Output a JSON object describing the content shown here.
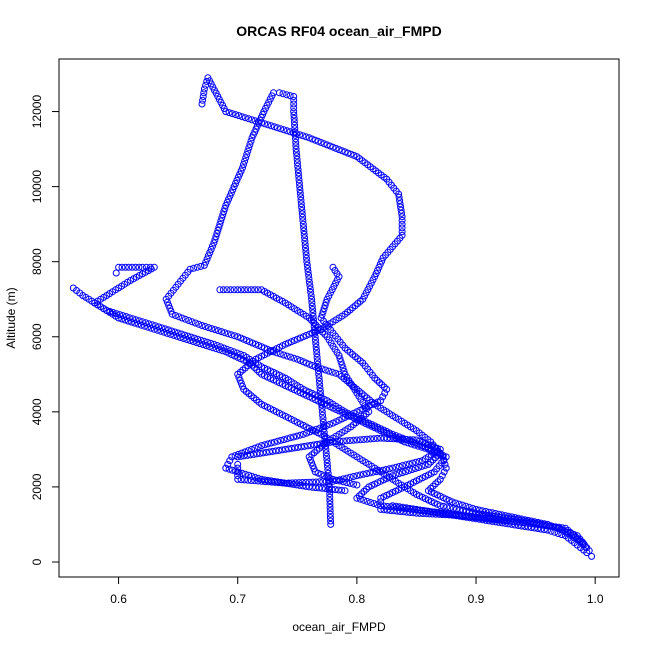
{
  "chart_data": {
    "type": "scatter",
    "title": "ORCAS RF04 ocean_air_FMPD",
    "xlabel": "ocean_air_FMPD",
    "ylabel": "Altitude (m)",
    "xlim": [
      0.55,
      1.02
    ],
    "ylim": [
      -400,
      13400
    ],
    "xticks": [
      0.6,
      0.7,
      0.8,
      0.9,
      1.0
    ],
    "xtick_labels": [
      "0.6",
      "0.7",
      "0.8",
      "0.9",
      "1.0"
    ],
    "yticks": [
      0,
      2000,
      4000,
      6000,
      8000,
      10000,
      12000
    ],
    "ytick_labels": [
      "0",
      "2000",
      "4000",
      "6000",
      "8000",
      "10000",
      "12000"
    ],
    "marker": "open-circle",
    "color": "#0000ff",
    "grid": false,
    "legend": "none",
    "series": [
      {
        "values": [
          [
            0.778,
            1000
          ],
          [
            0.777,
            2000
          ],
          [
            0.774,
            3000
          ],
          [
            0.771,
            4000
          ],
          [
            0.768,
            5000
          ],
          [
            0.765,
            6000
          ],
          [
            0.762,
            7000
          ],
          [
            0.758,
            8000
          ],
          [
            0.755,
            9000
          ],
          [
            0.752,
            10000
          ],
          [
            0.749,
            11000
          ],
          [
            0.747,
            12000
          ],
          [
            0.747,
            12400
          ],
          [
            0.735,
            12500
          ],
          [
            0.73,
            12500
          ],
          [
            0.722,
            12000
          ],
          [
            0.712,
            11300
          ],
          [
            0.704,
            10500
          ],
          [
            0.69,
            9500
          ],
          [
            0.68,
            8500
          ],
          [
            0.672,
            7900
          ],
          [
            0.66,
            7800
          ],
          [
            0.65,
            7400
          ],
          [
            0.64,
            7000
          ],
          [
            0.645,
            6600
          ],
          [
            0.67,
            6300
          ],
          [
            0.7,
            6000
          ],
          [
            0.73,
            5600
          ],
          [
            0.75,
            5400
          ],
          [
            0.765,
            5200
          ],
          [
            0.785,
            5000
          ],
          [
            0.8,
            4600
          ],
          [
            0.815,
            4200
          ],
          [
            0.835,
            3800
          ],
          [
            0.85,
            3500
          ],
          [
            0.862,
            3200
          ],
          [
            0.872,
            2800
          ],
          [
            0.875,
            2500
          ],
          [
            0.87,
            2200
          ],
          [
            0.86,
            1900
          ],
          [
            0.88,
            1600
          ],
          [
            0.9,
            1400
          ],
          [
            0.93,
            1200
          ],
          [
            0.96,
            1000
          ],
          [
            0.985,
            700
          ],
          [
            0.995,
            300
          ],
          [
            0.997,
            150
          ]
        ]
      },
      {
        "values": [
          [
            0.67,
            12200
          ],
          [
            0.672,
            12600
          ],
          [
            0.675,
            12900
          ],
          [
            0.69,
            12000
          ],
          [
            0.72,
            11700
          ],
          [
            0.76,
            11300
          ],
          [
            0.8,
            10800
          ],
          [
            0.825,
            10200
          ],
          [
            0.835,
            9800
          ],
          [
            0.838,
            9200
          ],
          [
            0.838,
            8700
          ],
          [
            0.83,
            8400
          ],
          [
            0.822,
            8100
          ],
          [
            0.815,
            7600
          ],
          [
            0.805,
            7000
          ],
          [
            0.79,
            6600
          ],
          [
            0.77,
            6200
          ],
          [
            0.74,
            5800
          ],
          [
            0.715,
            5400
          ],
          [
            0.7,
            5000
          ],
          [
            0.705,
            4600
          ],
          [
            0.72,
            4200
          ],
          [
            0.745,
            3800
          ],
          [
            0.77,
            3400
          ],
          [
            0.79,
            3000
          ],
          [
            0.81,
            2600
          ],
          [
            0.83,
            2200
          ],
          [
            0.85,
            1800
          ],
          [
            0.87,
            1500
          ],
          [
            0.9,
            1300
          ],
          [
            0.94,
            1100
          ],
          [
            0.97,
            900
          ],
          [
            0.985,
            600
          ],
          [
            0.992,
            400
          ]
        ]
      },
      {
        "values": [
          [
            0.598,
            7700
          ],
          [
            0.6,
            7850
          ],
          [
            0.62,
            7850
          ],
          [
            0.63,
            7850
          ],
          [
            0.61,
            7500
          ],
          [
            0.59,
            7100
          ],
          [
            0.58,
            6900
          ],
          [
            0.6,
            6500
          ],
          [
            0.63,
            6200
          ],
          [
            0.66,
            5900
          ],
          [
            0.69,
            5600
          ],
          [
            0.71,
            5300
          ],
          [
            0.72,
            5000
          ],
          [
            0.74,
            4700
          ],
          [
            0.76,
            4400
          ],
          [
            0.78,
            4100
          ],
          [
            0.8,
            3800
          ],
          [
            0.82,
            3500
          ],
          [
            0.84,
            3200
          ],
          [
            0.86,
            3000
          ],
          [
            0.875,
            2800
          ],
          [
            0.865,
            2400
          ],
          [
            0.84,
            2000
          ],
          [
            0.82,
            1700
          ],
          [
            0.82,
            1400
          ],
          [
            0.85,
            1300
          ],
          [
            0.88,
            1250
          ],
          [
            0.91,
            1150
          ],
          [
            0.94,
            1050
          ]
        ]
      },
      {
        "values": [
          [
            0.562,
            7300
          ],
          [
            0.57,
            7100
          ],
          [
            0.59,
            6700
          ],
          [
            0.62,
            6400
          ],
          [
            0.65,
            6100
          ],
          [
            0.68,
            5800
          ],
          [
            0.705,
            5500
          ],
          [
            0.72,
            5200
          ],
          [
            0.74,
            4900
          ],
          [
            0.755,
            4600
          ],
          [
            0.775,
            4300
          ],
          [
            0.79,
            4000
          ],
          [
            0.81,
            3700
          ],
          [
            0.83,
            3400
          ],
          [
            0.855,
            3100
          ],
          [
            0.87,
            2900
          ],
          [
            0.86,
            2600
          ],
          [
            0.83,
            2300
          ],
          [
            0.81,
            2000
          ],
          [
            0.8,
            1700
          ],
          [
            0.82,
            1500
          ],
          [
            0.86,
            1350
          ],
          [
            0.9,
            1200
          ],
          [
            0.94,
            1050
          ],
          [
            0.975,
            900
          ],
          [
            0.99,
            500
          ]
        ]
      },
      {
        "values": [
          [
            0.685,
            7250
          ],
          [
            0.7,
            7250
          ],
          [
            0.72,
            7250
          ],
          [
            0.74,
            6900
          ],
          [
            0.76,
            6500
          ],
          [
            0.775,
            6000
          ],
          [
            0.785,
            5500
          ],
          [
            0.79,
            5000
          ],
          [
            0.8,
            4500
          ],
          [
            0.81,
            4000
          ],
          [
            0.795,
            3600
          ],
          [
            0.775,
            3200
          ],
          [
            0.76,
            2800
          ],
          [
            0.765,
            2400
          ],
          [
            0.78,
            2200
          ],
          [
            0.8,
            2050
          ]
        ]
      },
      {
        "values": [
          [
            0.78,
            7850
          ],
          [
            0.785,
            7600
          ],
          [
            0.775,
            7000
          ],
          [
            0.77,
            6500
          ],
          [
            0.78,
            6100
          ],
          [
            0.79,
            5700
          ],
          [
            0.805,
            5300
          ],
          [
            0.815,
            4900
          ],
          [
            0.825,
            4600
          ],
          [
            0.82,
            4300
          ],
          [
            0.8,
            4000
          ],
          [
            0.78,
            3700
          ],
          [
            0.755,
            3400
          ],
          [
            0.72,
            3100
          ],
          [
            0.695,
            2800
          ],
          [
            0.69,
            2500
          ],
          [
            0.72,
            2200
          ],
          [
            0.76,
            2000
          ],
          [
            0.79,
            1900
          ]
        ]
      },
      {
        "values": [
          [
            0.7,
            2800
          ],
          [
            0.74,
            3000
          ],
          [
            0.78,
            3200
          ],
          [
            0.82,
            3300
          ],
          [
            0.85,
            3250
          ],
          [
            0.87,
            3000
          ],
          [
            0.855,
            2700
          ],
          [
            0.83,
            2500
          ],
          [
            0.8,
            2300
          ],
          [
            0.78,
            2150
          ],
          [
            0.74,
            2100
          ],
          [
            0.7,
            2200
          ],
          [
            0.7,
            2600
          ]
        ]
      },
      {
        "values": [
          [
            0.83,
            1500
          ],
          [
            0.85,
            1400
          ],
          [
            0.87,
            1300
          ],
          [
            0.9,
            1150
          ],
          [
            0.93,
            1000
          ],
          [
            0.96,
            850
          ],
          [
            0.975,
            700
          ],
          [
            0.985,
            450
          ],
          [
            0.993,
            250
          ]
        ]
      }
    ]
  }
}
